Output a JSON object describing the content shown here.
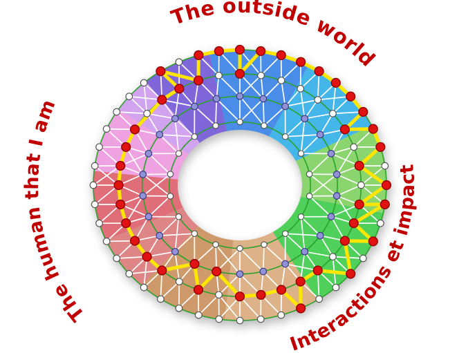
{
  "labels": {
    "top": "The outside world",
    "left": "The human that I am",
    "right": "Interactions et impact",
    "color": "#c00000"
  },
  "wheel": {
    "ring_line_color": "#2aa22a",
    "mesh_color": "#ffffff",
    "journey_color": "#ffe600",
    "node_colors": {
      "white": "#ffffff",
      "purple": "#9191d8",
      "red": "#e01212"
    },
    "sectors": [
      {
        "name": "blue",
        "from": -12,
        "to": 28,
        "color": "#4a8de8"
      },
      {
        "name": "cyan",
        "from": 28,
        "to": 64,
        "color": "#44b6ea"
      },
      {
        "name": "green-light",
        "from": 64,
        "to": 102,
        "color": "#8bd56e"
      },
      {
        "name": "green",
        "from": 102,
        "to": 148,
        "color": "#4ed05a"
      },
      {
        "name": "tan-light",
        "from": 148,
        "to": 186,
        "color": "#ddb289"
      },
      {
        "name": "tan",
        "from": 186,
        "to": 222,
        "color": "#cf9a6b"
      },
      {
        "name": "salmon",
        "from": 222,
        "to": 246,
        "color": "#de8585"
      },
      {
        "name": "red",
        "from": 246,
        "to": 276,
        "color": "#e06e78"
      },
      {
        "name": "pink",
        "from": 276,
        "to": 304,
        "color": "#efa2e2"
      },
      {
        "name": "lavender",
        "from": 304,
        "to": 320,
        "color": "#d2a3ef"
      },
      {
        "name": "purple",
        "from": 320,
        "to": 348,
        "color": "#7f66d9"
      }
    ],
    "rings": [
      {
        "name": "inner",
        "t": 0.1,
        "count": 18,
        "fill": "white",
        "radius": 4.2
      },
      {
        "name": "purple",
        "t": 0.42,
        "count": 26,
        "fill": "purple",
        "radius": 4.8
      },
      {
        "name": "mid",
        "t": 0.7,
        "count": 36,
        "fill": "white",
        "radius": 4.8
      },
      {
        "name": "outer",
        "t": 1.0,
        "count": 44,
        "fill": "white",
        "radius": 4.8
      }
    ],
    "journey": [
      {
        "ring": "outer",
        "deg": 0
      },
      {
        "ring": "mid",
        "deg": 4
      },
      {
        "ring": "outer",
        "deg": 8
      },
      {
        "ring": "outer",
        "deg": 16
      },
      {
        "ring": "outer",
        "deg": 25
      },
      {
        "ring": "outer",
        "deg": 33
      },
      {
        "ring": "outer",
        "deg": 41
      },
      {
        "ring": "outer",
        "deg": 49
      },
      {
        "ring": "outer",
        "deg": 58
      },
      {
        "ring": "mid",
        "deg": 64
      },
      {
        "ring": "outer",
        "deg": 66
      },
      {
        "ring": "outer",
        "deg": 74
      },
      {
        "ring": "mid",
        "deg": 84
      },
      {
        "ring": "outer",
        "deg": 90
      },
      {
        "ring": "mid",
        "deg": 95
      },
      {
        "ring": "outer",
        "deg": 101
      },
      {
        "ring": "mid",
        "deg": 108
      },
      {
        "ring": "outer",
        "deg": 113
      },
      {
        "ring": "mid",
        "deg": 121
      },
      {
        "ring": "outer",
        "deg": 127
      },
      {
        "ring": "mid",
        "deg": 136
      },
      {
        "ring": "mid",
        "deg": 146
      },
      {
        "ring": "outer",
        "deg": 152
      },
      {
        "ring": "mid",
        "deg": 158
      },
      {
        "ring": "mid",
        "deg": 169
      },
      {
        "ring": "mid",
        "deg": 180
      },
      {
        "ring": "purple",
        "deg": 190
      },
      {
        "ring": "mid",
        "deg": 199
      },
      {
        "ring": "purple",
        "deg": 208
      },
      {
        "ring": "mid",
        "deg": 217
      },
      {
        "ring": "mid",
        "deg": 228
      },
      {
        "ring": "mid",
        "deg": 238
      },
      {
        "ring": "mid",
        "deg": 249
      },
      {
        "ring": "mid",
        "deg": 260
      },
      {
        "ring": "mid",
        "deg": 271
      },
      {
        "ring": "mid",
        "deg": 282
      },
      {
        "ring": "mid",
        "deg": 293
      },
      {
        "ring": "mid",
        "deg": 304
      },
      {
        "ring": "mid",
        "deg": 315
      },
      {
        "ring": "mid",
        "deg": 325
      },
      {
        "ring": "outer",
        "deg": 331
      },
      {
        "ring": "mid",
        "deg": 336
      },
      {
        "ring": "outer",
        "deg": 343
      },
      {
        "ring": "outer",
        "deg": 352
      }
    ]
  }
}
